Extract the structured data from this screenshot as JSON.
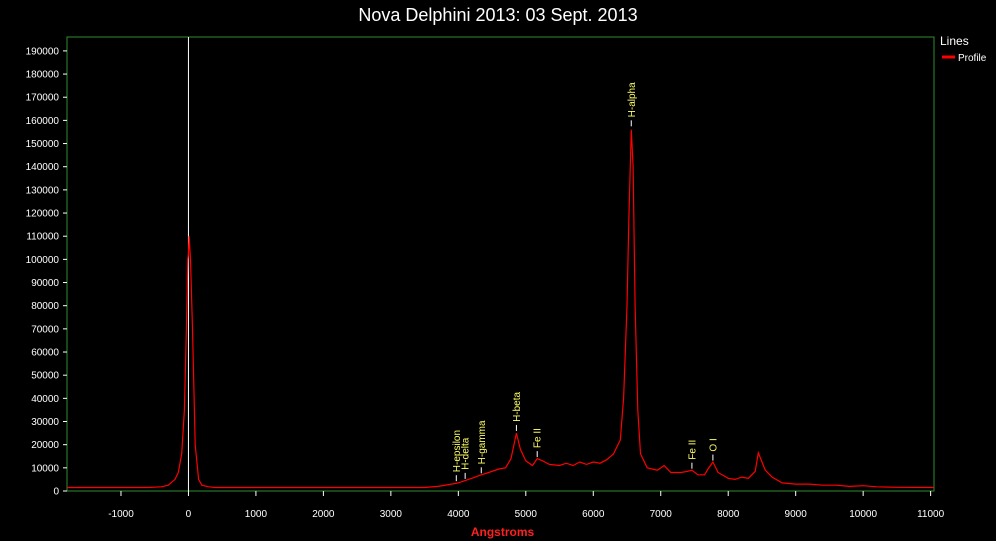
{
  "chart_data": {
    "type": "line",
    "title": "Nova Delphini 2013: 03 Sept. 2013",
    "xlabel": "Angstroms",
    "ylabel": "",
    "xlim": [
      -1800,
      11050
    ],
    "ylim": [
      0,
      196000
    ],
    "x_ticks": [
      -1000,
      0,
      1000,
      2000,
      3000,
      4000,
      5000,
      6000,
      7000,
      8000,
      9000,
      10000,
      11000
    ],
    "y_ticks": [
      0,
      10000,
      20000,
      30000,
      40000,
      50000,
      60000,
      70000,
      80000,
      90000,
      100000,
      110000,
      120000,
      130000,
      140000,
      150000,
      160000,
      170000,
      180000,
      190000
    ],
    "grid": false,
    "legend": {
      "title": "Lines",
      "placement": "top-right"
    },
    "reference_line_x": 0,
    "series": [
      {
        "name": "Profile",
        "color": "#ff0000",
        "points": [
          [
            -1800,
            1500
          ],
          [
            -600,
            1500
          ],
          [
            -400,
            1800
          ],
          [
            -300,
            2500
          ],
          [
            -200,
            5000
          ],
          [
            -150,
            8000
          ],
          [
            -100,
            16000
          ],
          [
            -60,
            35000
          ],
          [
            -30,
            70000
          ],
          [
            -10,
            100000
          ],
          [
            0,
            102000
          ],
          [
            10,
            110000
          ],
          [
            30,
            100000
          ],
          [
            60,
            70000
          ],
          [
            100,
            20000
          ],
          [
            150,
            5000
          ],
          [
            200,
            2500
          ],
          [
            300,
            1800
          ],
          [
            400,
            1500
          ],
          [
            3500,
            1500
          ],
          [
            3700,
            2000
          ],
          [
            3900,
            3000
          ],
          [
            4000,
            3500
          ],
          [
            4100,
            4500
          ],
          [
            4200,
            5500
          ],
          [
            4340,
            7000
          ],
          [
            4450,
            8000
          ],
          [
            4600,
            9500
          ],
          [
            4700,
            10000
          ],
          [
            4780,
            14000
          ],
          [
            4861,
            25000
          ],
          [
            4920,
            18000
          ],
          [
            5000,
            13000
          ],
          [
            5100,
            11000
          ],
          [
            5169,
            14000
          ],
          [
            5250,
            13000
          ],
          [
            5350,
            11500
          ],
          [
            5500,
            11000
          ],
          [
            5600,
            12000
          ],
          [
            5700,
            11000
          ],
          [
            5800,
            12500
          ],
          [
            5900,
            11500
          ],
          [
            6000,
            12500
          ],
          [
            6100,
            12000
          ],
          [
            6200,
            13500
          ],
          [
            6300,
            16000
          ],
          [
            6400,
            22000
          ],
          [
            6450,
            40000
          ],
          [
            6500,
            80000
          ],
          [
            6530,
            120000
          ],
          [
            6563,
            156000
          ],
          [
            6590,
            140000
          ],
          [
            6620,
            80000
          ],
          [
            6660,
            35000
          ],
          [
            6700,
            16000
          ],
          [
            6800,
            10000
          ],
          [
            6950,
            9000
          ],
          [
            7050,
            11000
          ],
          [
            7150,
            8000
          ],
          [
            7300,
            8000
          ],
          [
            7400,
            8500
          ],
          [
            7462,
            9000
          ],
          [
            7550,
            7000
          ],
          [
            7650,
            7000
          ],
          [
            7700,
            9500
          ],
          [
            7773,
            12500
          ],
          [
            7850,
            8000
          ],
          [
            8000,
            5500
          ],
          [
            8100,
            5000
          ],
          [
            8200,
            6000
          ],
          [
            8300,
            5500
          ],
          [
            8400,
            8500
          ],
          [
            8446,
            16500
          ],
          [
            8550,
            9000
          ],
          [
            8650,
            6000
          ],
          [
            8800,
            3500
          ],
          [
            9000,
            3000
          ],
          [
            9200,
            3000
          ],
          [
            9400,
            2500
          ],
          [
            9600,
            2500
          ],
          [
            9800,
            2000
          ],
          [
            10000,
            2300
          ],
          [
            10200,
            1800
          ],
          [
            10500,
            1600
          ],
          [
            11050,
            1500
          ]
        ]
      }
    ],
    "annotations": [
      {
        "label": "H-epsilon",
        "x": 3970,
        "y": 3800
      },
      {
        "label": "H-delta",
        "x": 4101,
        "y": 4800
      },
      {
        "label": "H-gamma",
        "x": 4340,
        "y": 7200
      },
      {
        "label": "H-beta",
        "x": 4861,
        "y": 25500
      },
      {
        "label": "Fe II",
        "x": 5169,
        "y": 14200
      },
      {
        "label": "H-alpha",
        "x": 6563,
        "y": 157000
      },
      {
        "label": "Fe II",
        "x": 7462,
        "y": 9200
      },
      {
        "label": "O I",
        "x": 7773,
        "y": 12700
      }
    ]
  }
}
